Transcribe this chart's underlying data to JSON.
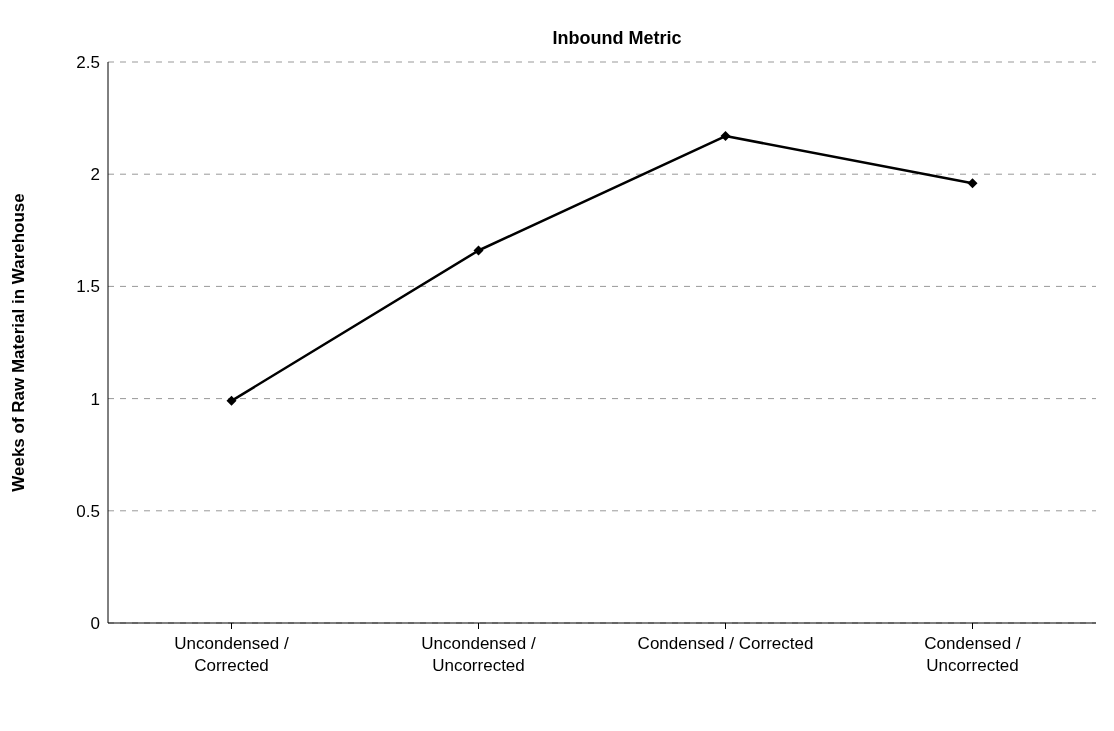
{
  "chart_data": {
    "type": "line",
    "title": "Inbound Metric",
    "ylabel": "Weeks of Raw Material in Warehouse",
    "categories": [
      "Uncondensed / Corrected",
      "Uncondensed / Uncorrected",
      "Condensed / Corrected",
      "Condensed / Uncorrected"
    ],
    "values": [
      0.99,
      1.66,
      2.17,
      1.96
    ],
    "color": "#000000",
    "marker": "diamond",
    "line_style": "solid",
    "ylim": [
      0,
      2.5
    ],
    "yticks": [
      0,
      0.5,
      1,
      1.5,
      2,
      2.5
    ],
    "grid": "y"
  }
}
